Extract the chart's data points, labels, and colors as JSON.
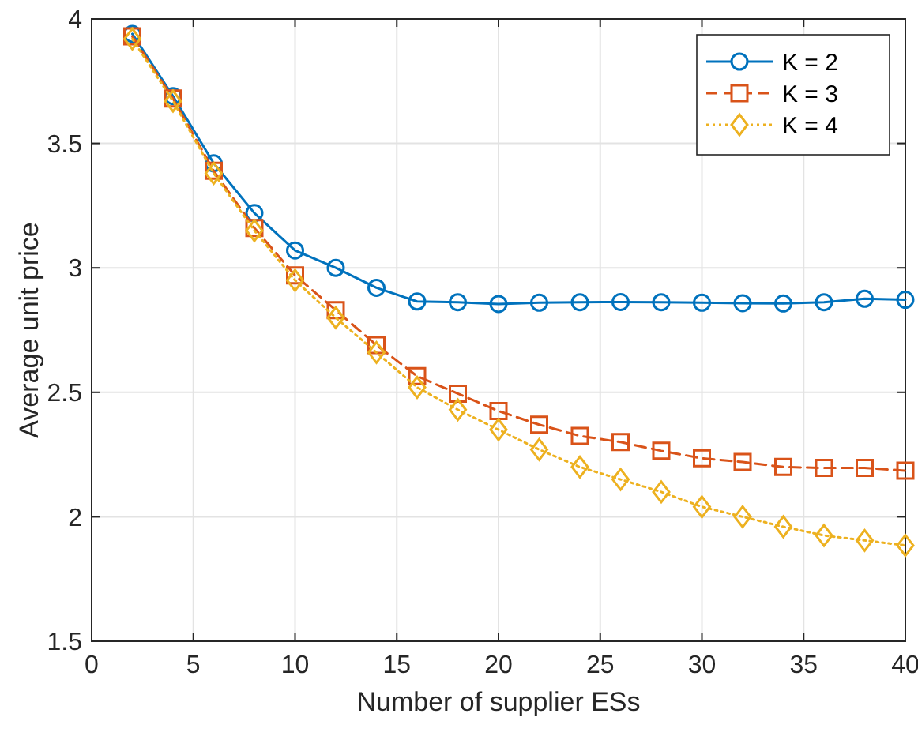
{
  "chart_data": {
    "type": "line",
    "xlabel": "Number of supplier ESs",
    "ylabel": "Average unit price",
    "x": [
      2,
      4,
      6,
      8,
      10,
      12,
      14,
      16,
      18,
      20,
      22,
      24,
      26,
      28,
      30,
      32,
      34,
      36,
      38,
      40
    ],
    "series": [
      {
        "name": "K = 2",
        "color": "#0072bd",
        "marker": "circle",
        "line_style": "solid",
        "values": [
          3.94,
          3.69,
          3.42,
          3.22,
          3.07,
          3.0,
          2.92,
          2.865,
          2.862,
          2.855,
          2.86,
          2.862,
          2.863,
          2.862,
          2.86,
          2.858,
          2.857,
          2.862,
          2.876,
          2.872
        ]
      },
      {
        "name": "K = 3",
        "color": "#d95319",
        "marker": "square",
        "line_style": "dashed",
        "values": [
          3.93,
          3.68,
          3.39,
          3.16,
          2.97,
          2.83,
          2.69,
          2.565,
          2.495,
          2.425,
          2.37,
          2.325,
          2.3,
          2.265,
          2.235,
          2.22,
          2.2,
          2.196,
          2.196,
          2.185
        ]
      },
      {
        "name": "K = 4",
        "color": "#edb120",
        "marker": "diamond",
        "line_style": "dotted",
        "values": [
          3.92,
          3.67,
          3.38,
          3.15,
          2.95,
          2.8,
          2.66,
          2.52,
          2.43,
          2.35,
          2.27,
          2.2,
          2.15,
          2.1,
          2.04,
          2.0,
          1.96,
          1.925,
          1.905,
          1.885
        ]
      }
    ],
    "xlim": [
      0,
      40
    ],
    "xticks": [
      0,
      5,
      10,
      15,
      20,
      25,
      30,
      35,
      40
    ],
    "ylim": [
      1.5,
      4
    ],
    "yticks": [
      1.5,
      2,
      2.5,
      3,
      3.5,
      4
    ],
    "grid": true,
    "legend": "top right"
  }
}
